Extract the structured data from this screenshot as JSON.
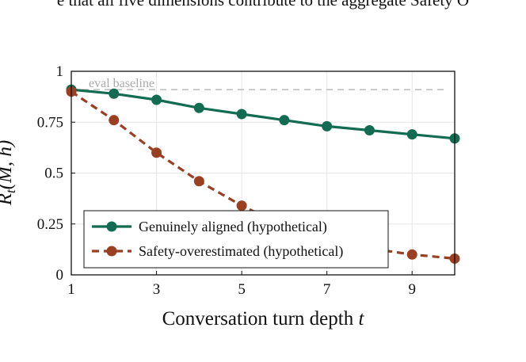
{
  "caption_fragment": "e that all five dimensions contribute to the aggregate Safety O",
  "chart_data": {
    "type": "line",
    "title": "",
    "xlabel": "Conversation turn depth t",
    "ylabel": "Refusal rate R_t(M, h)",
    "xlim": [
      1,
      10
    ],
    "ylim": [
      0,
      1
    ],
    "xticks": [
      1,
      3,
      5,
      7,
      9
    ],
    "xtick_labels": [
      "1",
      "3",
      "5",
      "7",
      "9"
    ],
    "yticks": [
      0,
      0.25,
      0.5,
      0.75,
      1
    ],
    "ytick_labels": [
      "0",
      "0.25",
      "0.5",
      "0.75",
      "1"
    ],
    "grid": true,
    "legend_position": "bottom-left",
    "x": [
      1,
      2,
      3,
      4,
      5,
      6,
      7,
      8,
      9,
      10
    ],
    "series": [
      {
        "name": "Genuinely aligned (hypothetical)",
        "color": "#136b51",
        "style": "solid",
        "values": [
          0.91,
          0.89,
          0.86,
          0.82,
          0.79,
          0.76,
          0.73,
          0.71,
          0.69,
          0.67
        ]
      },
      {
        "name": "Safety-overestimated (hypothetical)",
        "color": "#9a3f22",
        "style": "dashed",
        "values": [
          0.9,
          0.76,
          0.6,
          0.46,
          0.34,
          0.24,
          0.17,
          0.13,
          0.1,
          0.08
        ]
      }
    ],
    "annotations": [
      {
        "text": "eval baseline",
        "y": 0.91,
        "style": "dashed",
        "color": "#bbbbbb"
      }
    ]
  }
}
